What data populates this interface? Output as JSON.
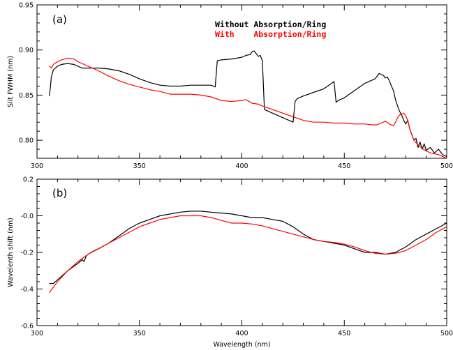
{
  "colors": {
    "black_series": "#000000",
    "red_series": "#ff0000"
  },
  "chart_data": [
    {
      "type": "line",
      "panel_label": "(a)",
      "ylabel": "Slit FWHM (nm)",
      "xlabel": "",
      "xlim": [
        300,
        500
      ],
      "ylim": [
        0.78,
        0.95
      ],
      "xticks": [
        300,
        350,
        400,
        450,
        500
      ],
      "yticks": [
        0.8,
        0.85,
        0.9,
        0.95
      ],
      "ytick_labels": [
        "0.80",
        "0.85",
        "0.90",
        "0.95"
      ],
      "legend_position": "top-center",
      "series": [
        {
          "name": "Without Absorption/Ring",
          "color": "#000000",
          "x": [
            306,
            306.5,
            307,
            308,
            309,
            310,
            311,
            312,
            315,
            318,
            320,
            322,
            325,
            330,
            335,
            340,
            345,
            350,
            355,
            360,
            365,
            370,
            375,
            380,
            385,
            386,
            387,
            388,
            390,
            395,
            400,
            402,
            404,
            405,
            406,
            407,
            408,
            409,
            410,
            411,
            415,
            420,
            425,
            426,
            427,
            430,
            435,
            440,
            445,
            446,
            447,
            450,
            455,
            460,
            465,
            467,
            469,
            470,
            471,
            472,
            473,
            474,
            475,
            476,
            477,
            478,
            479,
            480,
            481,
            482,
            483,
            484,
            485,
            486,
            487,
            488,
            489,
            490,
            492,
            494,
            496,
            498,
            500
          ],
          "y": [
            0.849,
            0.858,
            0.87,
            0.878,
            0.88,
            0.882,
            0.883,
            0.884,
            0.885,
            0.884,
            0.882,
            0.88,
            0.88,
            0.88,
            0.879,
            0.877,
            0.873,
            0.868,
            0.864,
            0.861,
            0.86,
            0.86,
            0.861,
            0.861,
            0.861,
            0.86,
            0.859,
            0.888,
            0.889,
            0.89,
            0.892,
            0.894,
            0.895,
            0.898,
            0.899,
            0.896,
            0.893,
            0.894,
            0.888,
            0.834,
            0.83,
            0.825,
            0.82,
            0.843,
            0.846,
            0.849,
            0.853,
            0.857,
            0.865,
            0.842,
            0.844,
            0.847,
            0.855,
            0.863,
            0.868,
            0.874,
            0.872,
            0.869,
            0.87,
            0.866,
            0.86,
            0.855,
            0.845,
            0.838,
            0.832,
            0.828,
            0.822,
            0.818,
            0.822,
            0.812,
            0.806,
            0.8,
            0.802,
            0.792,
            0.798,
            0.79,
            0.796,
            0.789,
            0.792,
            0.786,
            0.79,
            0.784,
            0.782
          ]
        },
        {
          "name": "With    Absorption/Ring",
          "color": "#ff0000",
          "x": [
            306,
            307,
            308,
            310,
            312,
            315,
            318,
            320,
            325,
            330,
            335,
            340,
            345,
            350,
            355,
            360,
            365,
            370,
            375,
            380,
            385,
            390,
            395,
            400,
            402,
            405,
            408,
            410,
            415,
            420,
            425,
            430,
            435,
            440,
            445,
            450,
            455,
            460,
            464,
            466,
            468,
            470,
            472,
            474,
            475,
            476,
            477,
            478,
            479,
            480,
            481,
            482,
            484,
            486,
            488,
            490,
            492,
            494,
            496,
            498,
            500
          ],
          "y": [
            0.882,
            0.88,
            0.884,
            0.887,
            0.889,
            0.891,
            0.89,
            0.887,
            0.882,
            0.877,
            0.871,
            0.866,
            0.862,
            0.859,
            0.856,
            0.854,
            0.851,
            0.851,
            0.851,
            0.85,
            0.848,
            0.844,
            0.843,
            0.844,
            0.845,
            0.841,
            0.84,
            0.838,
            0.834,
            0.83,
            0.826,
            0.822,
            0.82,
            0.82,
            0.819,
            0.819,
            0.818,
            0.818,
            0.817,
            0.817,
            0.819,
            0.821,
            0.818,
            0.816,
            0.82,
            0.825,
            0.828,
            0.829,
            0.83,
            0.827,
            0.822,
            0.812,
            0.8,
            0.795,
            0.791,
            0.788,
            0.786,
            0.785,
            0.784,
            0.782,
            0.78
          ]
        }
      ]
    },
    {
      "type": "line",
      "panel_label": "(b)",
      "ylabel": "Wavelenth shift (nm)",
      "xlabel": "Wavelength (nm)",
      "xlim": [
        300,
        500
      ],
      "ylim": [
        -0.6,
        0.2
      ],
      "xticks": [
        300,
        350,
        400,
        450,
        500
      ],
      "yticks": [
        -0.6,
        -0.4,
        -0.2,
        0.0,
        0.2
      ],
      "ytick_labels": [
        "-0.6",
        "-0.4",
        "-0.2",
        "-0.0",
        "0.2"
      ],
      "series": [
        {
          "name": "",
          "color": "#000000",
          "x": [
            306,
            308,
            310,
            315,
            320,
            322,
            323,
            324,
            325,
            328,
            330,
            335,
            340,
            345,
            350,
            355,
            360,
            365,
            370,
            375,
            380,
            385,
            390,
            395,
            400,
            405,
            410,
            415,
            420,
            425,
            430,
            435,
            440,
            445,
            450,
            455,
            460,
            465,
            470,
            475,
            480,
            485,
            490,
            495,
            500
          ],
          "y": [
            -0.37,
            -0.37,
            -0.35,
            -0.3,
            -0.26,
            -0.24,
            -0.25,
            -0.22,
            -0.21,
            -0.19,
            -0.18,
            -0.15,
            -0.11,
            -0.07,
            -0.04,
            -0.02,
            0.0,
            0.01,
            0.02,
            0.025,
            0.025,
            0.02,
            0.015,
            0.01,
            0.0,
            -0.01,
            -0.01,
            -0.02,
            -0.03,
            -0.06,
            -0.1,
            -0.13,
            -0.14,
            -0.15,
            -0.16,
            -0.18,
            -0.2,
            -0.2,
            -0.21,
            -0.2,
            -0.17,
            -0.13,
            -0.1,
            -0.07,
            -0.04
          ]
        },
        {
          "name": "",
          "color": "#ff0000",
          "x": [
            306,
            308,
            310,
            315,
            320,
            325,
            330,
            335,
            340,
            345,
            350,
            355,
            360,
            365,
            370,
            375,
            380,
            385,
            390,
            395,
            400,
            405,
            410,
            415,
            420,
            425,
            430,
            435,
            440,
            445,
            450,
            455,
            460,
            465,
            470,
            475,
            480,
            485,
            490,
            495,
            500
          ],
          "y": [
            -0.42,
            -0.39,
            -0.36,
            -0.3,
            -0.25,
            -0.21,
            -0.18,
            -0.15,
            -0.12,
            -0.09,
            -0.06,
            -0.04,
            -0.02,
            -0.01,
            0.0,
            0.0,
            0.0,
            -0.01,
            -0.025,
            -0.04,
            -0.04,
            -0.045,
            -0.055,
            -0.07,
            -0.085,
            -0.1,
            -0.115,
            -0.13,
            -0.14,
            -0.145,
            -0.155,
            -0.17,
            -0.19,
            -0.205,
            -0.21,
            -0.205,
            -0.19,
            -0.16,
            -0.13,
            -0.09,
            -0.06
          ]
        }
      ]
    }
  ]
}
